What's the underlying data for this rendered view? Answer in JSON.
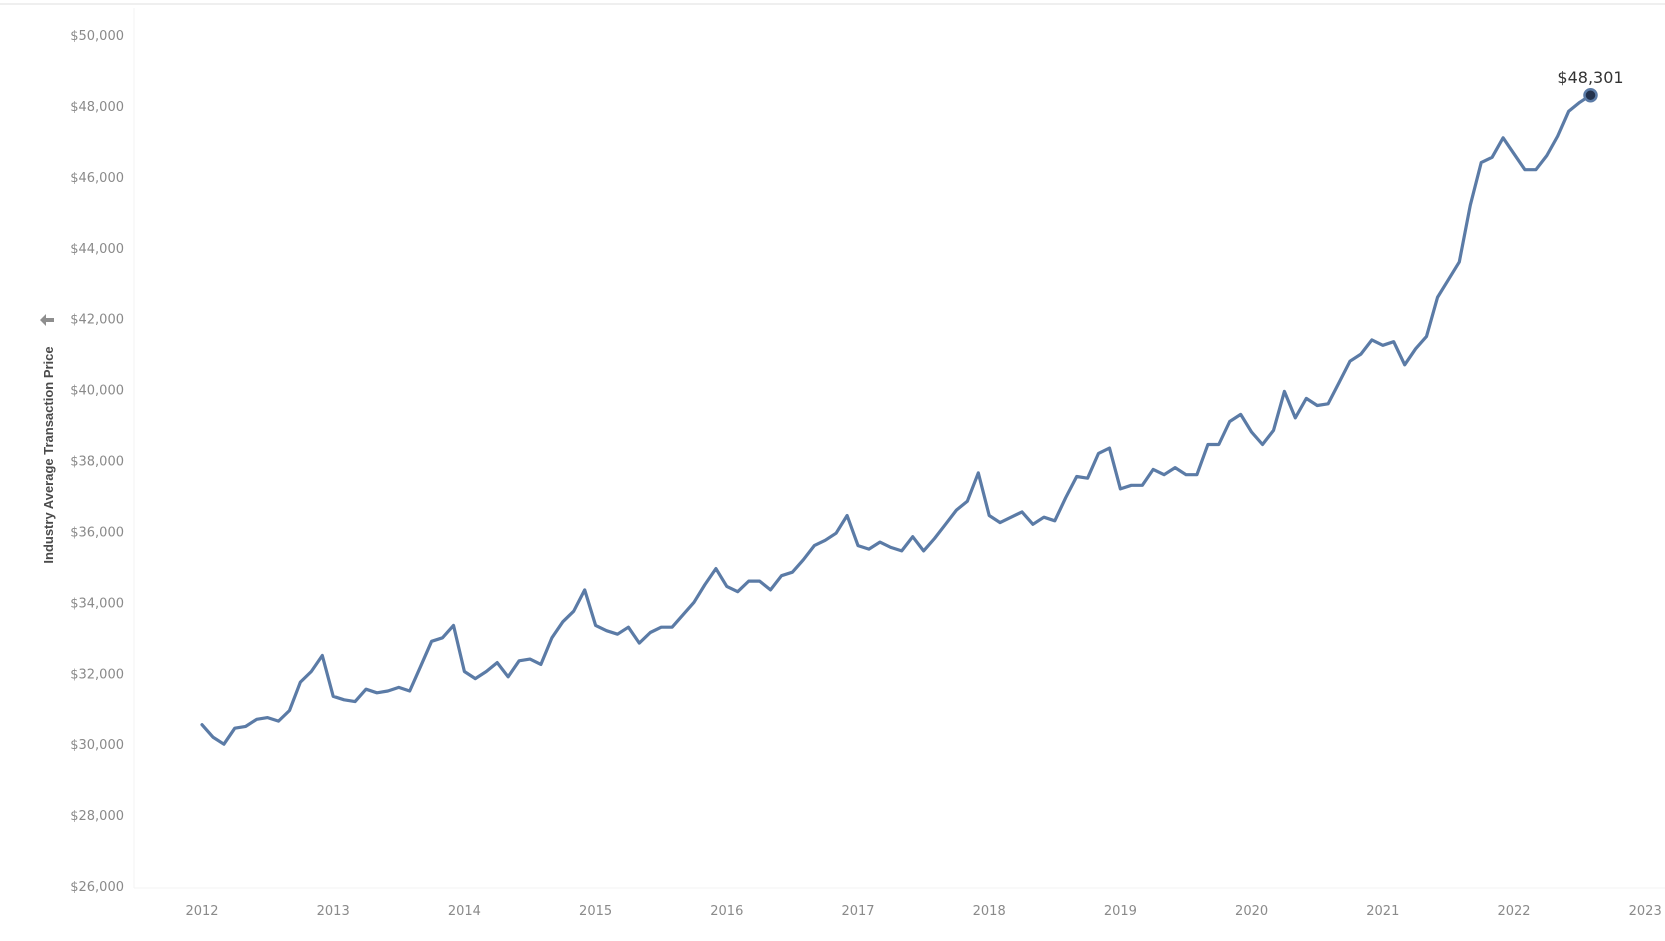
{
  "chart_data": {
    "type": "line",
    "ylabel": "Industry Average Transaction Price",
    "ylim": [
      26000,
      50000
    ],
    "y_ticks": [
      "$26,000",
      "$28,000",
      "$30,000",
      "$32,000",
      "$34,000",
      "$36,000",
      "$38,000",
      "$40,000",
      "$42,000",
      "$44,000",
      "$46,000",
      "$48,000",
      "$50,000"
    ],
    "x_ticks": [
      "2012",
      "2013",
      "2014",
      "2015",
      "2016",
      "2017",
      "2018",
      "2019",
      "2020",
      "2021",
      "2022",
      "2023"
    ],
    "xlim": [
      "2012-01",
      "2023-01"
    ],
    "grid": false,
    "end_label": "$48,301",
    "series": [
      {
        "x": [
          "2012-01",
          "2012-02",
          "2012-03",
          "2012-04",
          "2012-05",
          "2012-06",
          "2012-07",
          "2012-08",
          "2012-09",
          "2012-10",
          "2012-11",
          "2012-12",
          "2013-01",
          "2013-02",
          "2013-03",
          "2013-04",
          "2013-05",
          "2013-06",
          "2013-07",
          "2013-08",
          "2013-09",
          "2013-10",
          "2013-11",
          "2013-12",
          "2014-01",
          "2014-02",
          "2014-03",
          "2014-04",
          "2014-05",
          "2014-06",
          "2014-07",
          "2014-08",
          "2014-09",
          "2014-10",
          "2014-11",
          "2014-12",
          "2015-01",
          "2015-02",
          "2015-03",
          "2015-04",
          "2015-05",
          "2015-06",
          "2015-07",
          "2015-08",
          "2015-09",
          "2015-10",
          "2015-11",
          "2015-12",
          "2016-01",
          "2016-02",
          "2016-03",
          "2016-04",
          "2016-05",
          "2016-06",
          "2016-07",
          "2016-08",
          "2016-09",
          "2016-10",
          "2016-11",
          "2016-12",
          "2017-01",
          "2017-02",
          "2017-03",
          "2017-04",
          "2017-05",
          "2017-06",
          "2017-07",
          "2017-08",
          "2017-09",
          "2017-10",
          "2017-11",
          "2017-12",
          "2018-01",
          "2018-02",
          "2018-03",
          "2018-04",
          "2018-05",
          "2018-06",
          "2018-07",
          "2018-08",
          "2018-09",
          "2018-10",
          "2018-11",
          "2018-12",
          "2019-01",
          "2019-02",
          "2019-03",
          "2019-04",
          "2019-05",
          "2019-06",
          "2019-07",
          "2019-08",
          "2019-09",
          "2019-10",
          "2019-11",
          "2019-12",
          "2020-01",
          "2020-02",
          "2020-03",
          "2020-04",
          "2020-05",
          "2020-06",
          "2020-07",
          "2020-08",
          "2020-09",
          "2020-10",
          "2020-11",
          "2020-12",
          "2021-01",
          "2021-02",
          "2021-03",
          "2021-04",
          "2021-05",
          "2021-06",
          "2021-07",
          "2021-08",
          "2021-09",
          "2021-10",
          "2021-11",
          "2021-12",
          "2022-01",
          "2022-02",
          "2022-03",
          "2022-04",
          "2022-05",
          "2022-06",
          "2022-07",
          "2022-08"
        ],
        "y": [
          30550,
          30200,
          30000,
          30450,
          30500,
          30700,
          30750,
          30650,
          30950,
          31750,
          32050,
          32500,
          31350,
          31250,
          31200,
          31550,
          31450,
          31500,
          31600,
          31500,
          32200,
          32900,
          33000,
          33350,
          32050,
          31850,
          32050,
          32300,
          31900,
          32350,
          32400,
          32250,
          33000,
          33450,
          33750,
          34350,
          33350,
          33200,
          33100,
          33300,
          32850,
          33150,
          33300,
          33300,
          33650,
          34000,
          34500,
          34950,
          34450,
          34300,
          34600,
          34600,
          34350,
          34750,
          34850,
          35200,
          35600,
          35750,
          35950,
          36450,
          35600,
          35500,
          35700,
          35550,
          35450,
          35850,
          35450,
          35800,
          36200,
          36600,
          36850,
          37650,
          36450,
          36250,
          36400,
          36550,
          36200,
          36400,
          36300,
          36950,
          37550,
          37500,
          38200,
          38350,
          37200,
          37300,
          37300,
          37750,
          37600,
          37800,
          37600,
          37600,
          38450,
          38450,
          39100,
          39300,
          38800,
          38450,
          38850,
          39950,
          39200,
          39750,
          39550,
          39600,
          40200,
          40800,
          41000,
          41400,
          41250,
          41350,
          40700,
          41150,
          41500,
          42600,
          43100,
          43600,
          45200,
          46400,
          46550,
          47100,
          46650,
          46200,
          46200,
          46600,
          47150,
          47850,
          48100,
          48301
        ]
      }
    ]
  }
}
